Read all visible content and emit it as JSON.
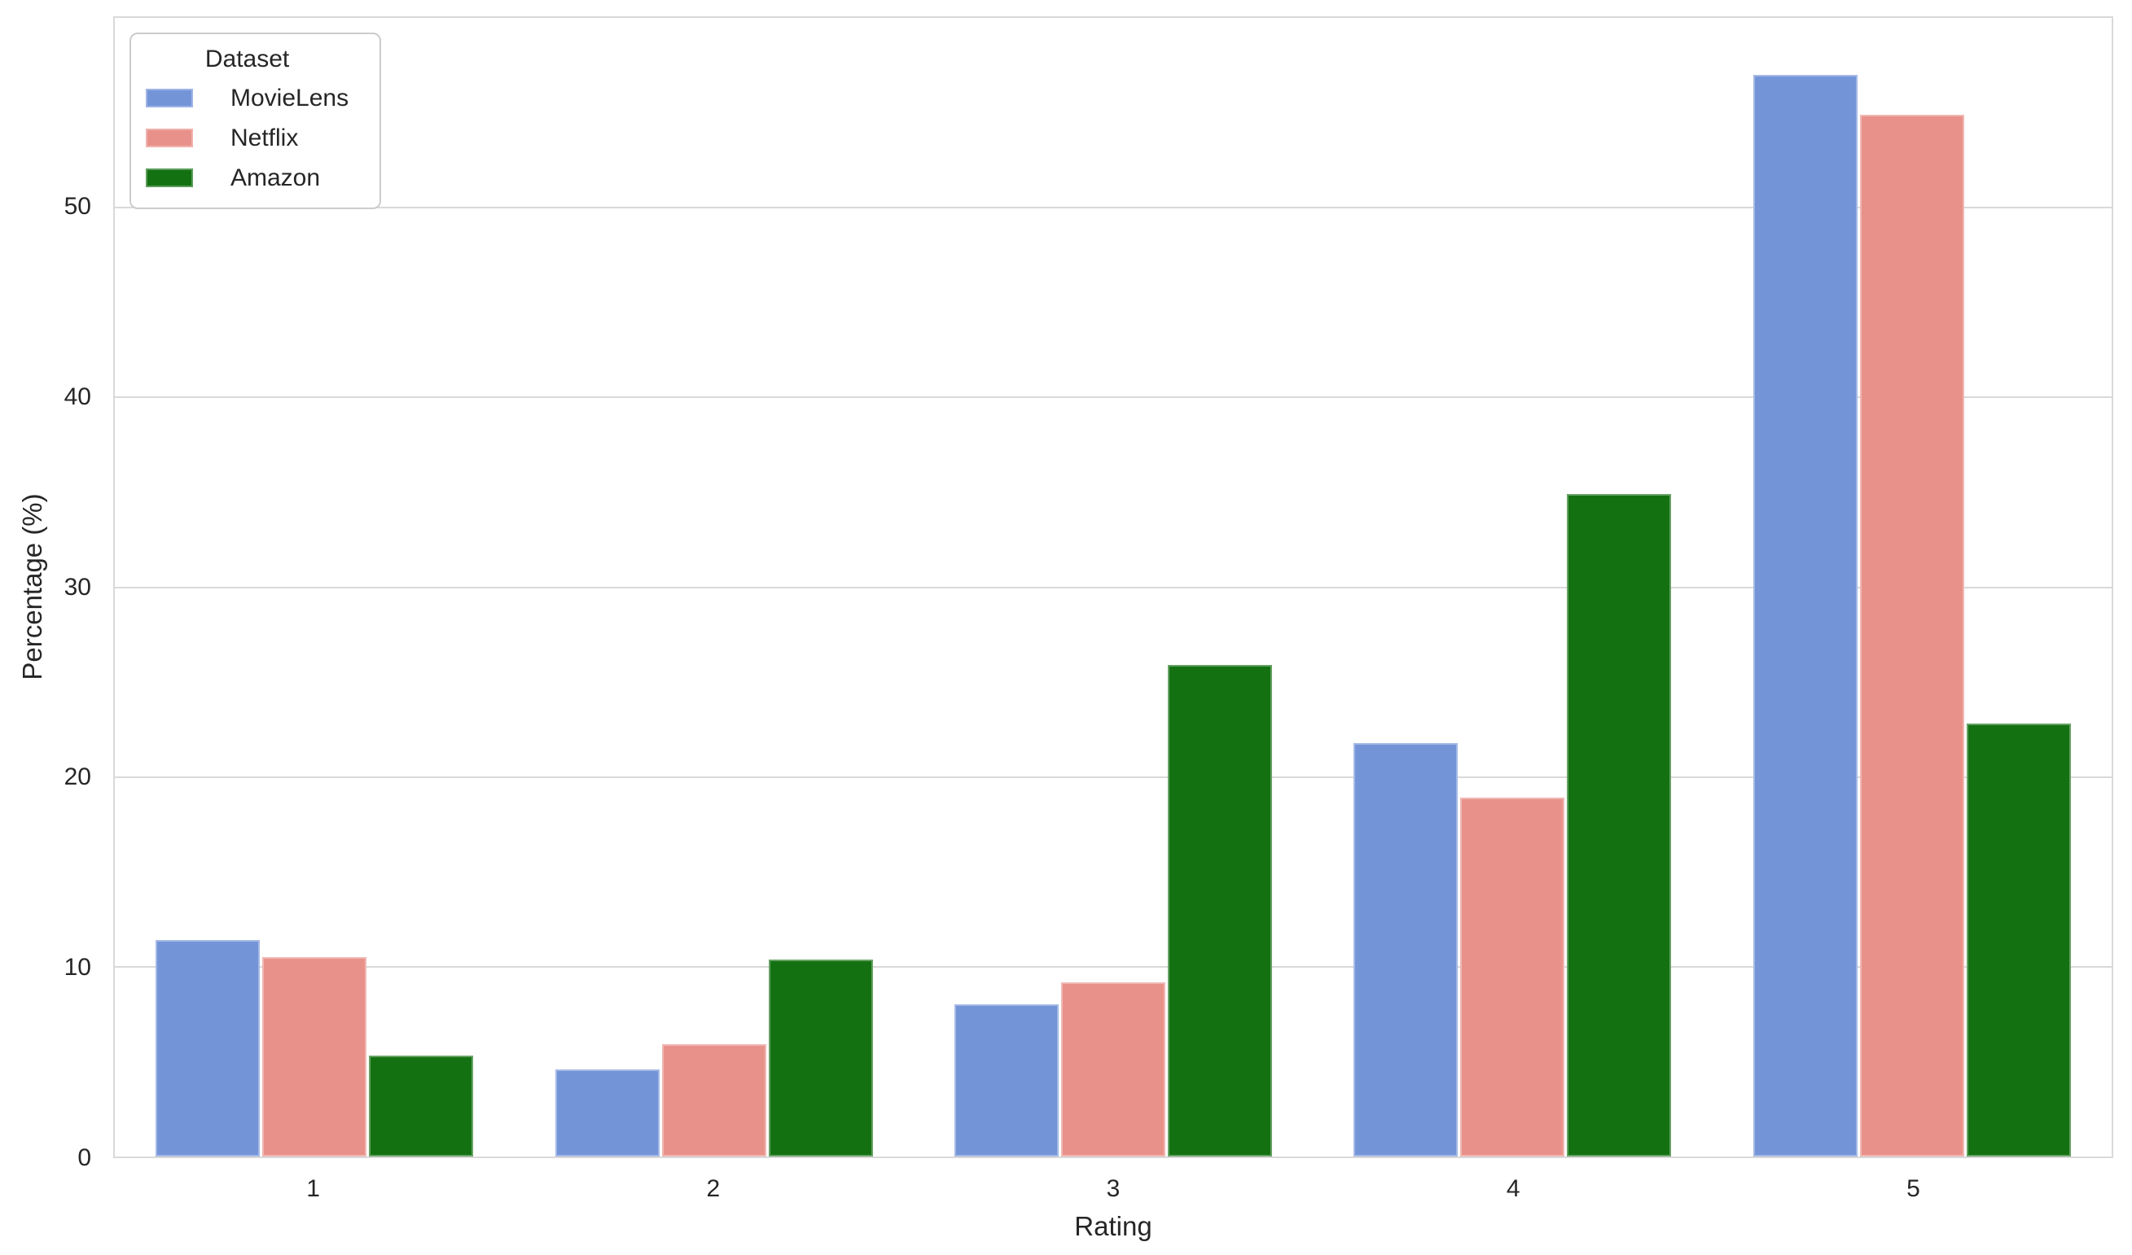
{
  "chart_data": {
    "type": "bar",
    "title": "",
    "xlabel": "Rating",
    "ylabel": "Percentage (%)",
    "categories": [
      "1",
      "2",
      "3",
      "4",
      "5"
    ],
    "series": [
      {
        "name": "MovieLens",
        "color": "#7494D8",
        "values": [
          11.4,
          4.6,
          8.0,
          21.8,
          57.0
        ]
      },
      {
        "name": "Netflix",
        "color": "#E8918A",
        "values": [
          10.5,
          5.9,
          9.2,
          18.9,
          54.9
        ]
      },
      {
        "name": "Amazon",
        "color": "#147112",
        "values": [
          5.3,
          10.4,
          25.9,
          34.9,
          22.8
        ]
      }
    ],
    "ylim": [
      0,
      60
    ],
    "yticks": [
      0,
      10,
      20,
      30,
      40,
      50
    ],
    "grid": true,
    "legend_title": "Dataset",
    "legend_position": "upper left",
    "style": {
      "grid_color": "#d9d9d9",
      "text_color": "#262626",
      "background": "#ffffff"
    }
  }
}
